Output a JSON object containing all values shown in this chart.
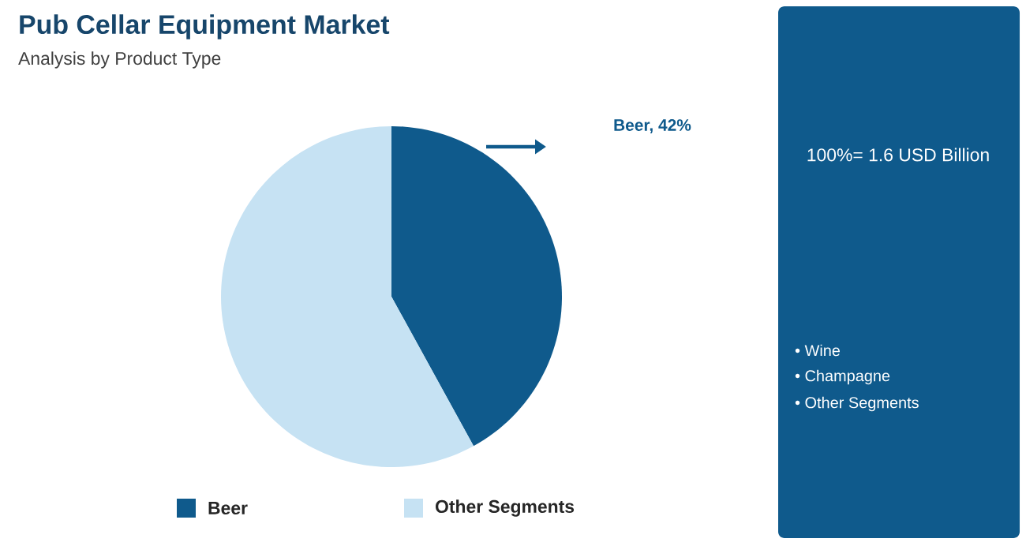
{
  "chart_data": {
    "type": "pie",
    "title": "Pub Cellar Equipment Market",
    "subtitle": "Analysis by Product Type",
    "categories": [
      "Beer",
      "Other Segments"
    ],
    "values": [
      42,
      58
    ],
    "colors": [
      "#0f5a8c",
      "#c6e2f3"
    ],
    "value_labels": [
      "Beer, 42%",
      null
    ],
    "legend": "bottom",
    "annotations": [
      "100%= 1.6 USD Billion",
      "• Wine",
      "• Champagne",
      "• Other Segments"
    ]
  }
}
